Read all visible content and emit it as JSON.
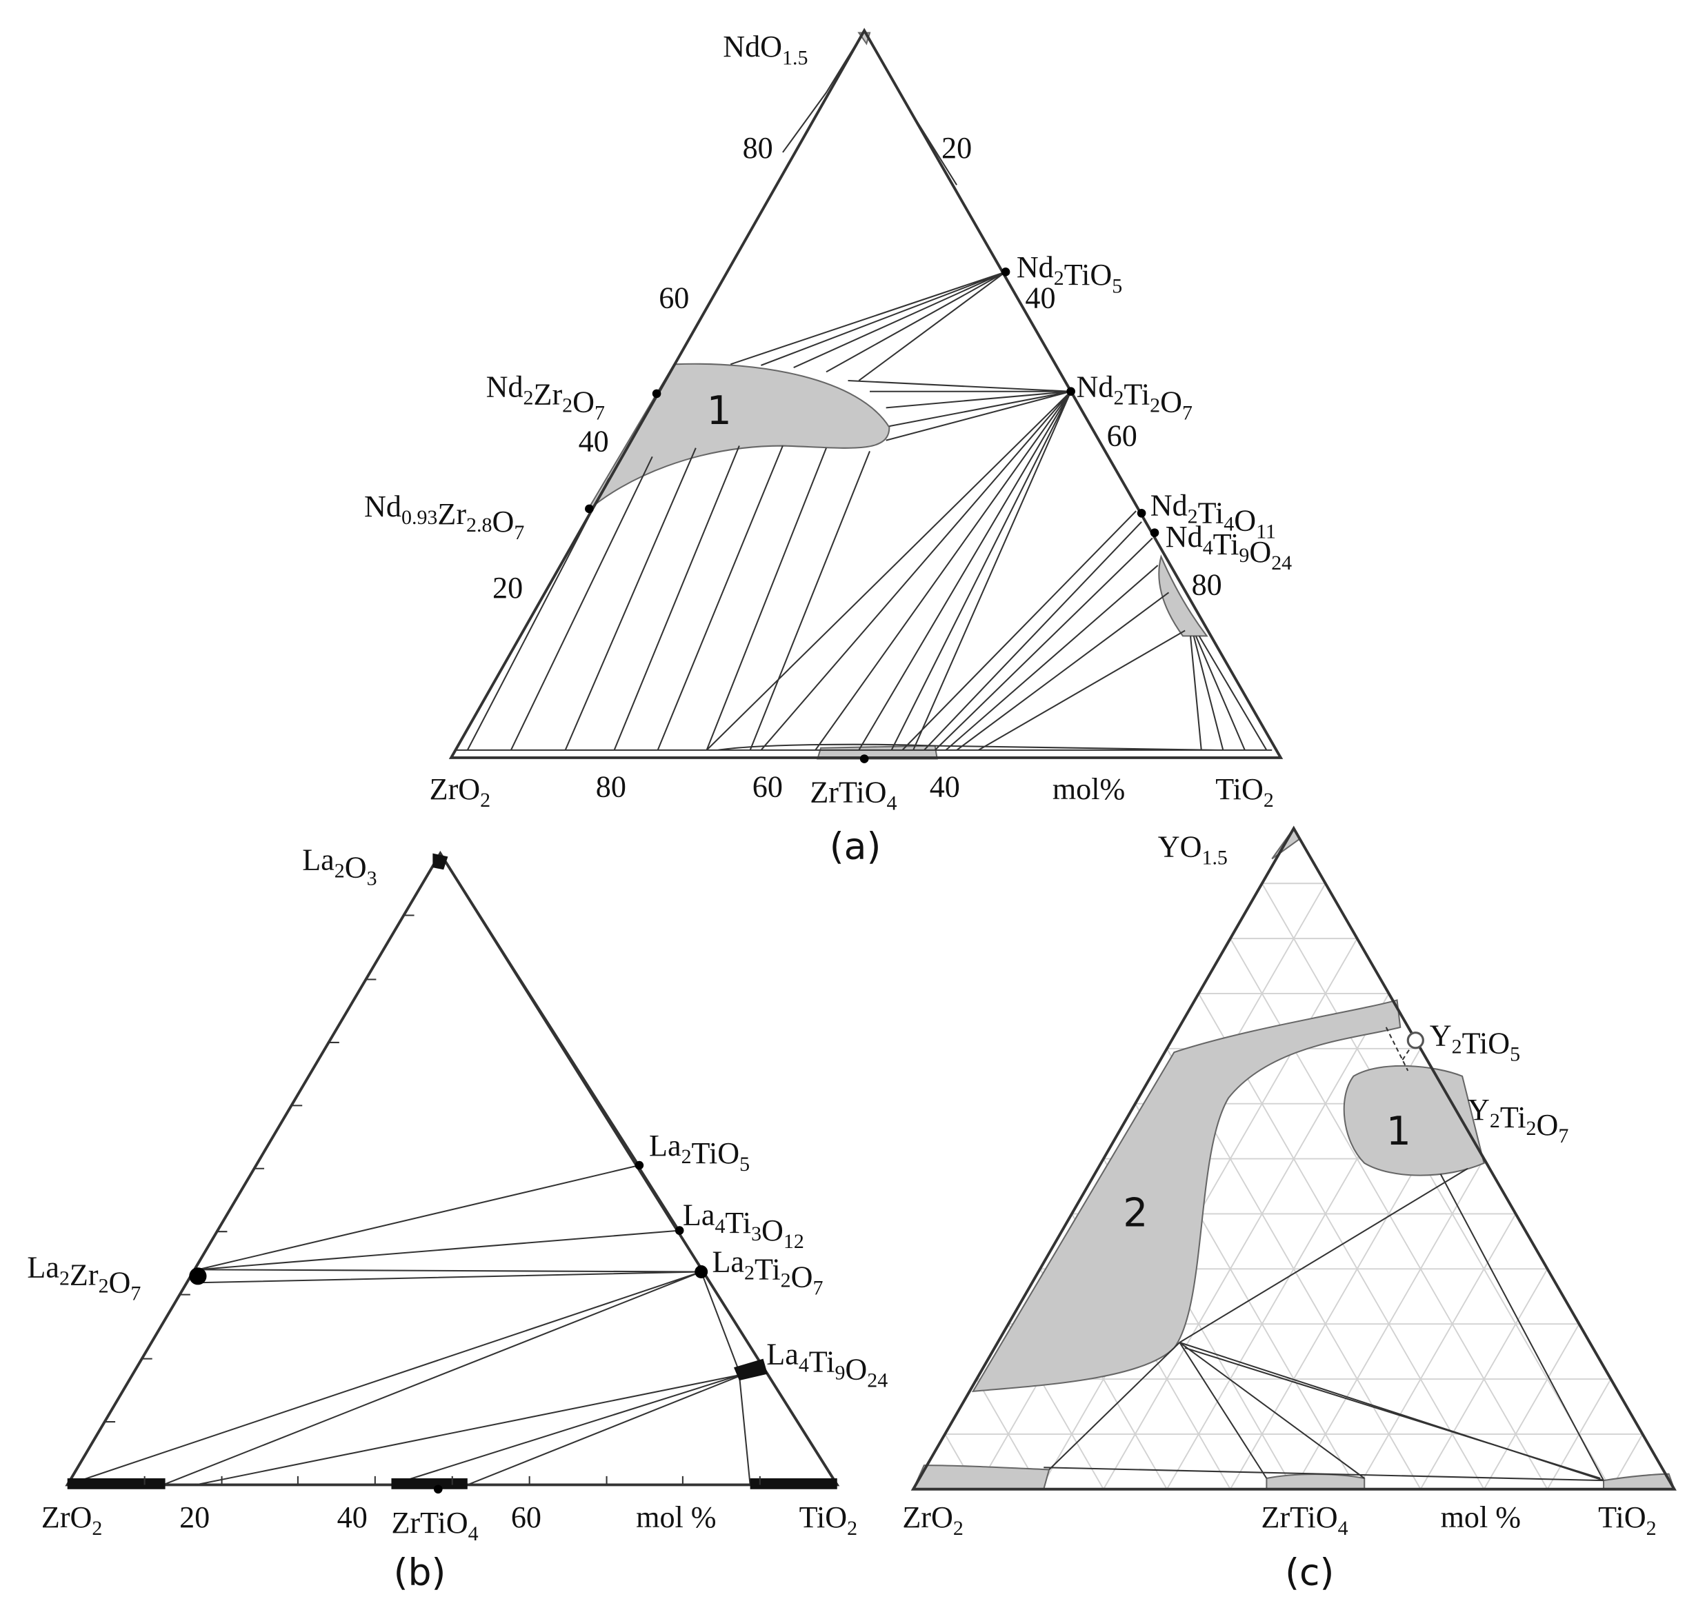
{
  "panels": [
    {
      "caption": "(a)",
      "labels": [
        "NdO1.5",
        "80",
        "20",
        "Nd2TiO5",
        "40",
        "60",
        "Nd2Zr2O7",
        "1",
        "Nd2Ti2O7",
        "40",
        "60",
        "Nd0.93Zr2.8O7",
        "Nd2Ti4O11",
        "Nd4Ti9O24",
        "20",
        "80",
        "ZrO2",
        "80",
        "60",
        "ZrTiO4",
        "40",
        "mol%",
        "TiO2"
      ]
    },
    {
      "caption": "(b)",
      "labels": [
        "La2O3",
        "La2TiO5",
        "La4Ti3O12",
        "La2Zr2O7",
        "La2Ti2O7",
        "La4Ti9O24",
        "ZrO2",
        "20",
        "40",
        "ZrTiO4",
        "60",
        "mol %",
        "TiO2"
      ]
    },
    {
      "caption": "(c)",
      "labels": [
        "YO1.5",
        "Y2TiO5",
        "Y2Ti2O7",
        "1",
        "2",
        "ZrO2",
        "ZrTiO4",
        "mol %",
        "TiO2"
      ]
    }
  ]
}
